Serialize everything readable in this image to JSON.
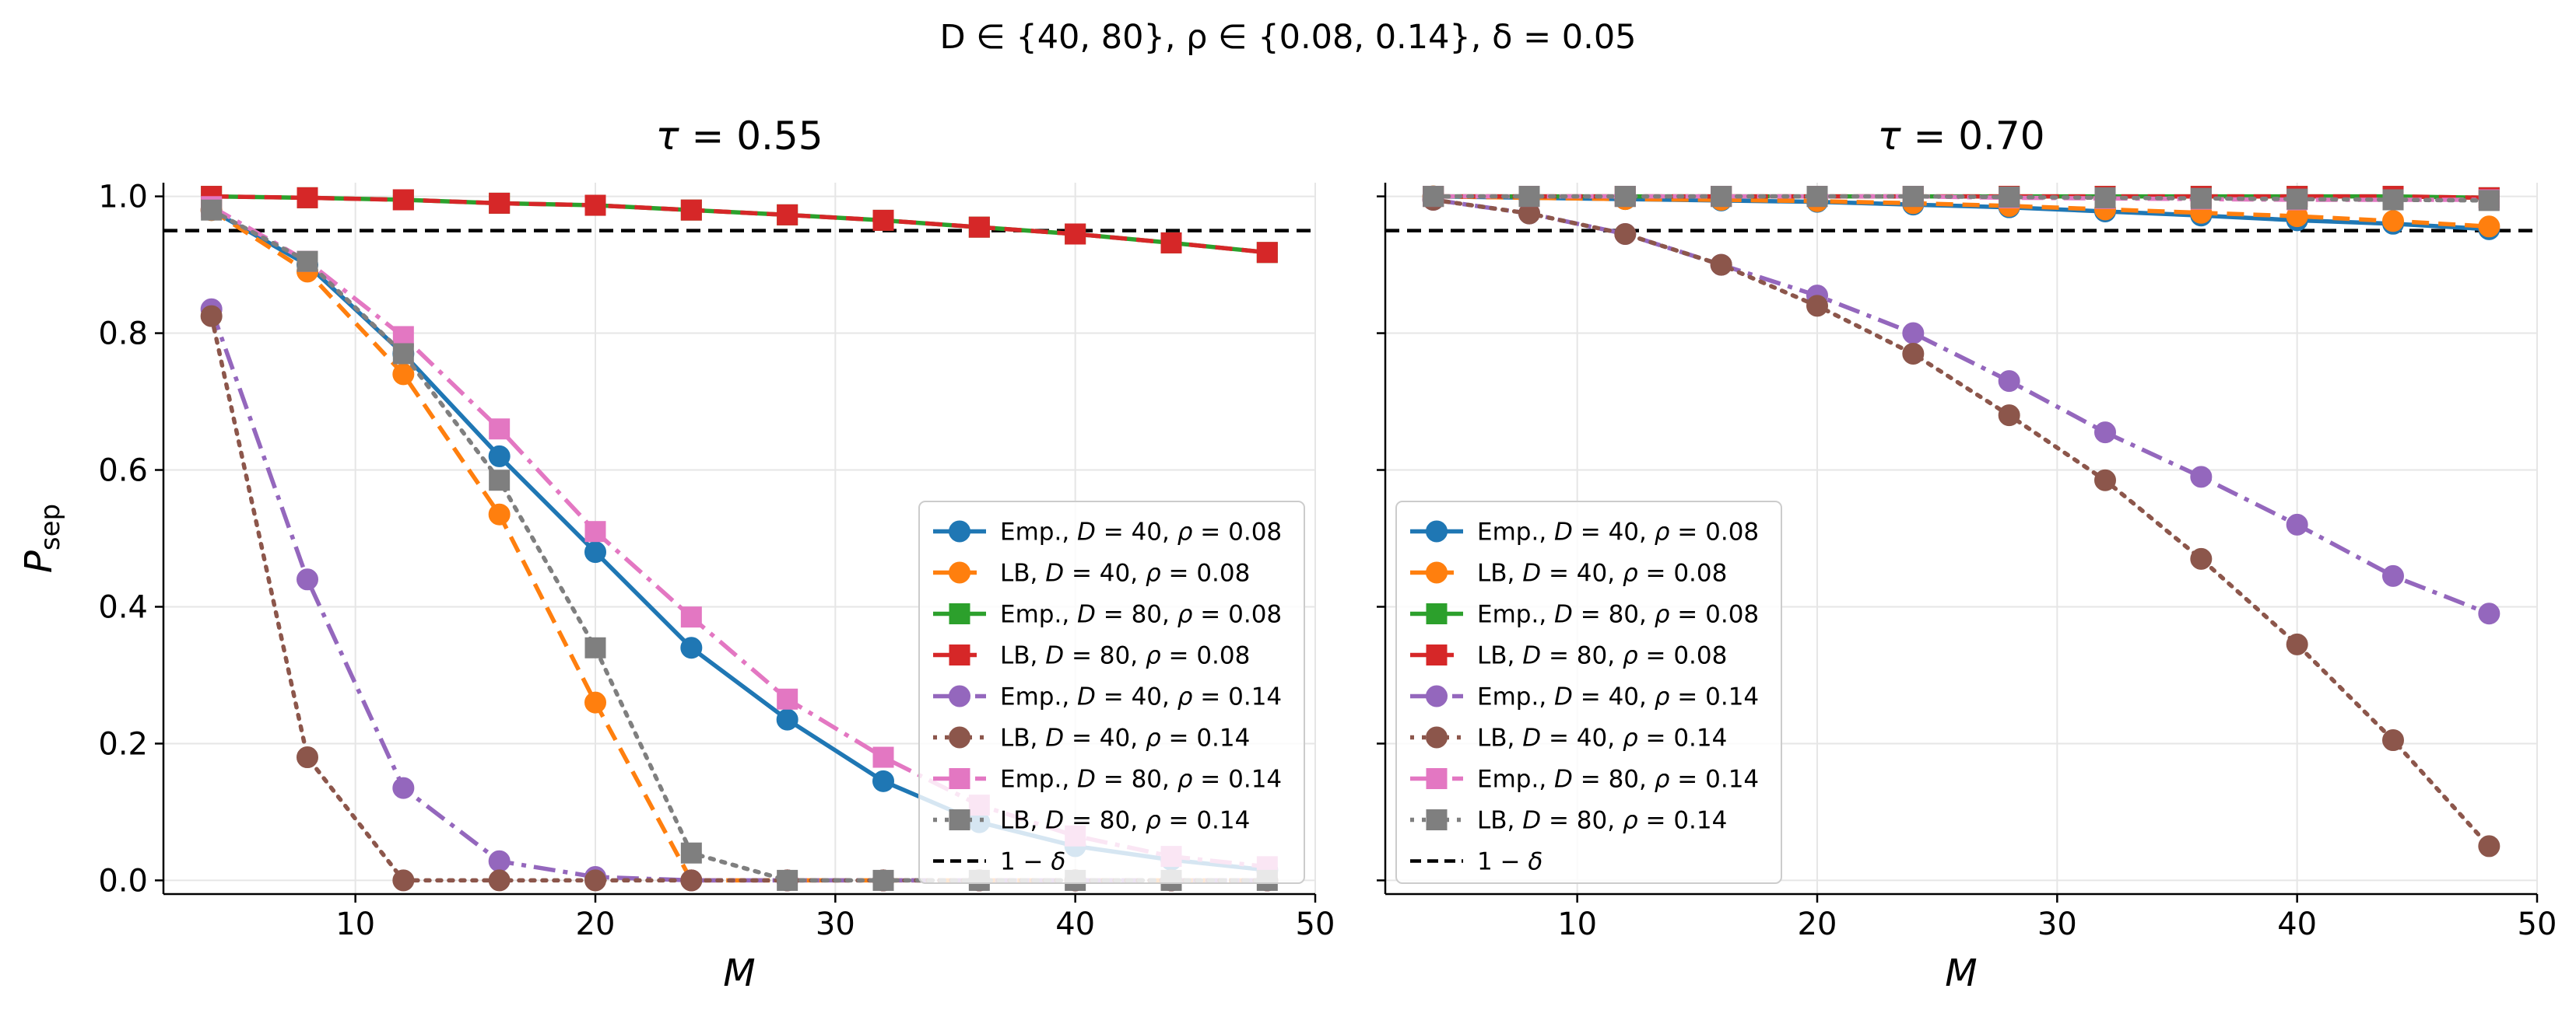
{
  "figure": {
    "suptitle": "D ∈ {40, 80},  ρ ∈ {0.08, 0.14},  δ = 0.05"
  },
  "colors": {
    "emp_D40_r008": "#1f77b4",
    "lb_D40_r008": "#ff7f0e",
    "emp_D80_r008": "#2ca02c",
    "lb_D80_r008": "#d62728",
    "emp_D40_r014": "#9467bd",
    "lb_D40_r014": "#8c564b",
    "emp_D80_r014": "#e377c2",
    "lb_D80_r014": "#7f7f7f",
    "threshold": "#000000",
    "grid": "#e6e6e6"
  },
  "chart_data": [
    {
      "type": "line",
      "title": "τ = 0.55",
      "xlabel": "M",
      "ylabel": "P_sep",
      "xlim": [
        2,
        50
      ],
      "ylim": [
        -0.02,
        1.02
      ],
      "xticks": [
        10,
        20,
        30,
        40,
        50
      ],
      "yticks": [
        0.0,
        0.2,
        0.4,
        0.6,
        0.8,
        1.0
      ],
      "grid": true,
      "legend_position": "lower right",
      "x": [
        4,
        8,
        12,
        16,
        20,
        24,
        28,
        32,
        36,
        40,
        44,
        48
      ],
      "hline": {
        "y": 0.95,
        "label": "1 − δ"
      },
      "series": [
        {
          "name": "Emp., D = 40, ρ = 0.08",
          "color": "#1f77b4",
          "marker": "circle",
          "dash": "solid",
          "values": [
            0.98,
            0.9,
            0.77,
            0.62,
            0.48,
            0.34,
            0.235,
            0.145,
            0.085,
            0.05,
            0.03,
            0.015
          ]
        },
        {
          "name": "LB, D = 40, ρ = 0.08",
          "color": "#ff7f0e",
          "marker": "circle",
          "dash": "dashed",
          "values": [
            0.98,
            0.89,
            0.74,
            0.535,
            0.26,
            0.0,
            0.0,
            0.0,
            0.0,
            0.0,
            0.0,
            0.0
          ]
        },
        {
          "name": "Emp., D = 80, ρ = 0.08",
          "color": "#2ca02c",
          "marker": "square",
          "dash": "solid",
          "values": [
            1.0,
            0.998,
            0.995,
            0.99,
            0.987,
            0.98,
            0.973,
            0.965,
            0.955,
            0.945,
            0.932,
            0.918
          ]
        },
        {
          "name": "LB, D = 80, ρ = 0.08",
          "color": "#d62728",
          "marker": "square",
          "dash": "dashed",
          "values": [
            1.0,
            0.998,
            0.995,
            0.99,
            0.987,
            0.98,
            0.973,
            0.965,
            0.955,
            0.945,
            0.932,
            0.918
          ]
        },
        {
          "name": "Emp., D = 40, ρ = 0.14",
          "color": "#9467bd",
          "marker": "circle",
          "dash": "dashdot",
          "values": [
            0.835,
            0.44,
            0.135,
            0.028,
            0.005,
            0.0,
            0.0,
            0.0,
            0.0,
            0.0,
            0.0,
            0.0
          ]
        },
        {
          "name": "LB, D = 40, ρ = 0.14",
          "color": "#8c564b",
          "marker": "circle",
          "dash": "dotted",
          "values": [
            0.825,
            0.18,
            0.0,
            0.0,
            0.0,
            0.0,
            0.0,
            0.0,
            0.0,
            0.0,
            0.0,
            0.0
          ]
        },
        {
          "name": "Emp., D = 80, ρ = 0.14",
          "color": "#e377c2",
          "marker": "square",
          "dash": "dashdot",
          "values": [
            0.985,
            0.905,
            0.795,
            0.66,
            0.51,
            0.385,
            0.265,
            0.18,
            0.11,
            0.065,
            0.035,
            0.02
          ]
        },
        {
          "name": "LB, D = 80, ρ = 0.14",
          "color": "#7f7f7f",
          "marker": "square",
          "dash": "dotted",
          "values": [
            0.98,
            0.905,
            0.77,
            0.585,
            0.34,
            0.04,
            0.0,
            0.0,
            0.0,
            0.0,
            0.0,
            0.0
          ]
        }
      ]
    },
    {
      "type": "line",
      "title": "τ = 0.70",
      "xlabel": "M",
      "ylabel": "",
      "xlim": [
        2,
        50
      ],
      "ylim": [
        -0.02,
        1.02
      ],
      "xticks": [
        10,
        20,
        30,
        40,
        50
      ],
      "yticks": [
        0.0,
        0.2,
        0.4,
        0.6,
        0.8,
        1.0
      ],
      "grid": true,
      "legend_position": "lower left",
      "x": [
        4,
        8,
        12,
        16,
        20,
        24,
        28,
        32,
        36,
        40,
        44,
        48
      ],
      "hline": {
        "y": 0.95,
        "label": "1 − δ"
      },
      "series": [
        {
          "name": "Emp., D = 40, ρ = 0.08",
          "color": "#1f77b4",
          "marker": "circle",
          "dash": "solid",
          "values": [
            1.0,
            0.998,
            0.996,
            0.994,
            0.992,
            0.988,
            0.984,
            0.978,
            0.972,
            0.965,
            0.96,
            0.952
          ]
        },
        {
          "name": "LB, D = 40, ρ = 0.08",
          "color": "#ff7f0e",
          "marker": "circle",
          "dash": "dashed",
          "values": [
            1.0,
            0.998,
            0.996,
            0.995,
            0.993,
            0.99,
            0.986,
            0.981,
            0.976,
            0.971,
            0.964,
            0.956
          ]
        },
        {
          "name": "Emp., D = 80, ρ = 0.08",
          "color": "#2ca02c",
          "marker": "square",
          "dash": "solid",
          "values": [
            1.0,
            1.0,
            1.0,
            1.0,
            1.0,
            1.0,
            1.0,
            1.0,
            1.0,
            1.0,
            1.0,
            0.998
          ]
        },
        {
          "name": "LB, D = 80, ρ = 0.08",
          "color": "#d62728",
          "marker": "square",
          "dash": "dashed",
          "values": [
            1.0,
            1.0,
            1.0,
            1.0,
            1.0,
            1.0,
            1.0,
            1.0,
            1.0,
            1.0,
            1.0,
            0.998
          ]
        },
        {
          "name": "Emp., D = 40, ρ = 0.14",
          "color": "#9467bd",
          "marker": "circle",
          "dash": "dashdot",
          "values": [
            0.995,
            0.975,
            0.945,
            0.9,
            0.855,
            0.8,
            0.73,
            0.655,
            0.59,
            0.52,
            0.445,
            0.39
          ]
        },
        {
          "name": "LB, D = 40, ρ = 0.14",
          "color": "#8c564b",
          "marker": "circle",
          "dash": "dotted",
          "values": [
            0.995,
            0.975,
            0.945,
            0.9,
            0.84,
            0.77,
            0.68,
            0.585,
            0.47,
            0.345,
            0.205,
            0.05
          ]
        },
        {
          "name": "Emp., D = 80, ρ = 0.14",
          "color": "#e377c2",
          "marker": "square",
          "dash": "dashdot",
          "values": [
            1.0,
            1.0,
            1.0,
            1.0,
            1.0,
            1.0,
            0.998,
            0.997,
            0.996,
            0.995,
            0.995,
            0.995
          ]
        },
        {
          "name": "LB, D = 80, ρ = 0.14",
          "color": "#7f7f7f",
          "marker": "square",
          "dash": "dotted",
          "values": [
            1.0,
            1.0,
            1.0,
            1.0,
            1.0,
            1.0,
            0.999,
            0.998,
            0.997,
            0.996,
            0.995,
            0.994
          ]
        }
      ]
    }
  ]
}
